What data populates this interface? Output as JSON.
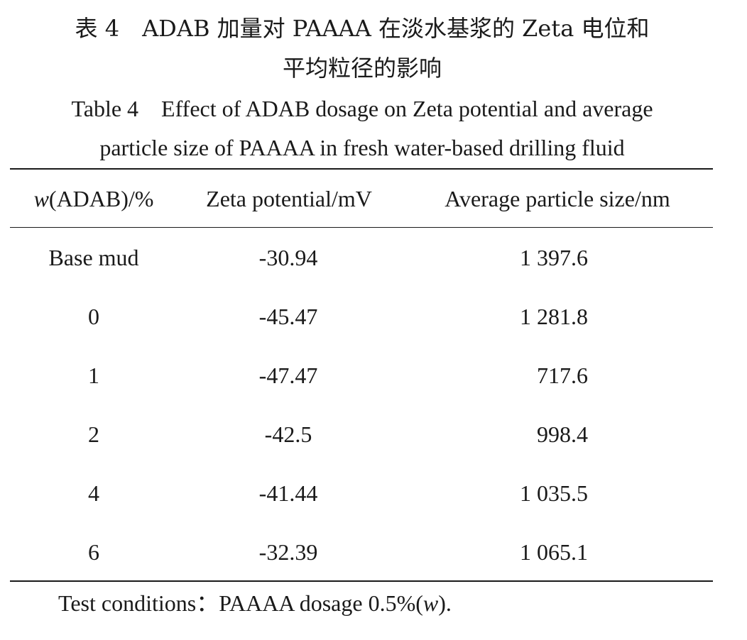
{
  "caption": {
    "cn_line1": "表 4　ADAB 加量对 PAAAA 在淡水基浆的 Zeta 电位和",
    "cn_line2": "平均粒径的影响",
    "en_line1": "Table 4　Effect of ADAB dosage on Zeta potential and average",
    "en_line2": "particle size of PAAAA in fresh water-based drilling fluid"
  },
  "table": {
    "headers": {
      "col1_var": "w",
      "col1_rest": "(ADAB)/%",
      "col2": "Zeta potential/mV",
      "col3": "Average particle size/nm"
    },
    "rows": [
      {
        "adab": "Base mud",
        "zeta": "-30.94",
        "size": "1 397.6"
      },
      {
        "adab": "0",
        "zeta": "-45.47",
        "size": "1 281.8"
      },
      {
        "adab": "1",
        "zeta": "-47.47",
        "size": "717.6"
      },
      {
        "adab": "2",
        "zeta": "-42.5",
        "size": "998.4"
      },
      {
        "adab": "4",
        "zeta": "-41.44",
        "size": "1 035.5"
      },
      {
        "adab": "6",
        "zeta": "-32.39",
        "size": "1 065.1"
      }
    ]
  },
  "footnote": {
    "prefix": "Test conditions：PAAAA dosage 0.5%(",
    "var": "w",
    "suffix": ")."
  }
}
